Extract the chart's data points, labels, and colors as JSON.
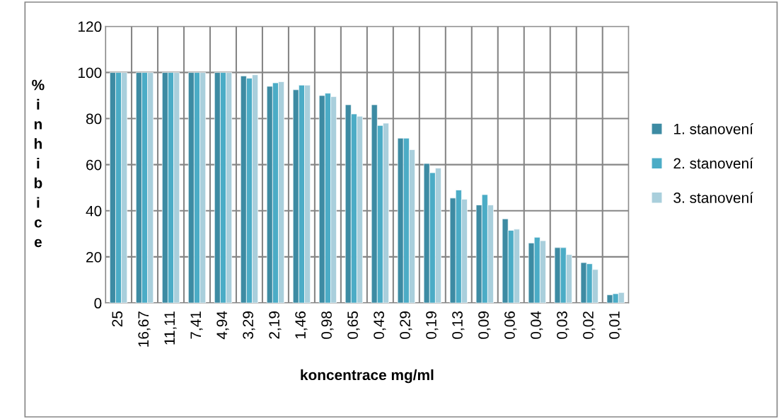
{
  "chart_data": {
    "type": "bar",
    "xlabel": "koncentrace mg/ml",
    "ylabel": "% inhibice",
    "categories": [
      "25",
      "16,67",
      "11,11",
      "7,41",
      "4,94",
      "3,29",
      "2,19",
      "1,46",
      "0,98",
      "0,65",
      "0,43",
      "0,29",
      "0,19",
      "0,13",
      "0,09",
      "0,06",
      "0,04",
      "0,03",
      "0,02",
      "0,01"
    ],
    "series": [
      {
        "name": "1. stanovení",
        "color": "#3d8ba3",
        "values": [
          100,
          100,
          100,
          100,
          100,
          98.5,
          94,
          92.5,
          90,
          86,
          86,
          71.5,
          60.5,
          45.5,
          42.5,
          36.5,
          26,
          24,
          17.5,
          3.5
        ]
      },
      {
        "name": "2. stanovení",
        "color": "#4bacc6",
        "values": [
          100,
          100,
          100,
          100,
          100,
          97.5,
          95.5,
          94.5,
          91,
          82,
          77,
          71.5,
          56.5,
          49,
          47,
          31.5,
          28.5,
          24,
          17,
          4
        ]
      },
      {
        "name": "3. stanovení",
        "color": "#a9cfdc",
        "values": [
          100,
          100,
          100,
          100,
          100,
          99,
          96,
          94.5,
          89.5,
          81,
          78,
          66.5,
          58.5,
          45,
          42.5,
          32,
          27,
          21,
          14.5,
          4.5
        ]
      }
    ],
    "ylim": [
      0,
      120
    ],
    "yticks": [
      0,
      20,
      40,
      60,
      80,
      100,
      120
    ],
    "grid": true,
    "legend": "right"
  }
}
